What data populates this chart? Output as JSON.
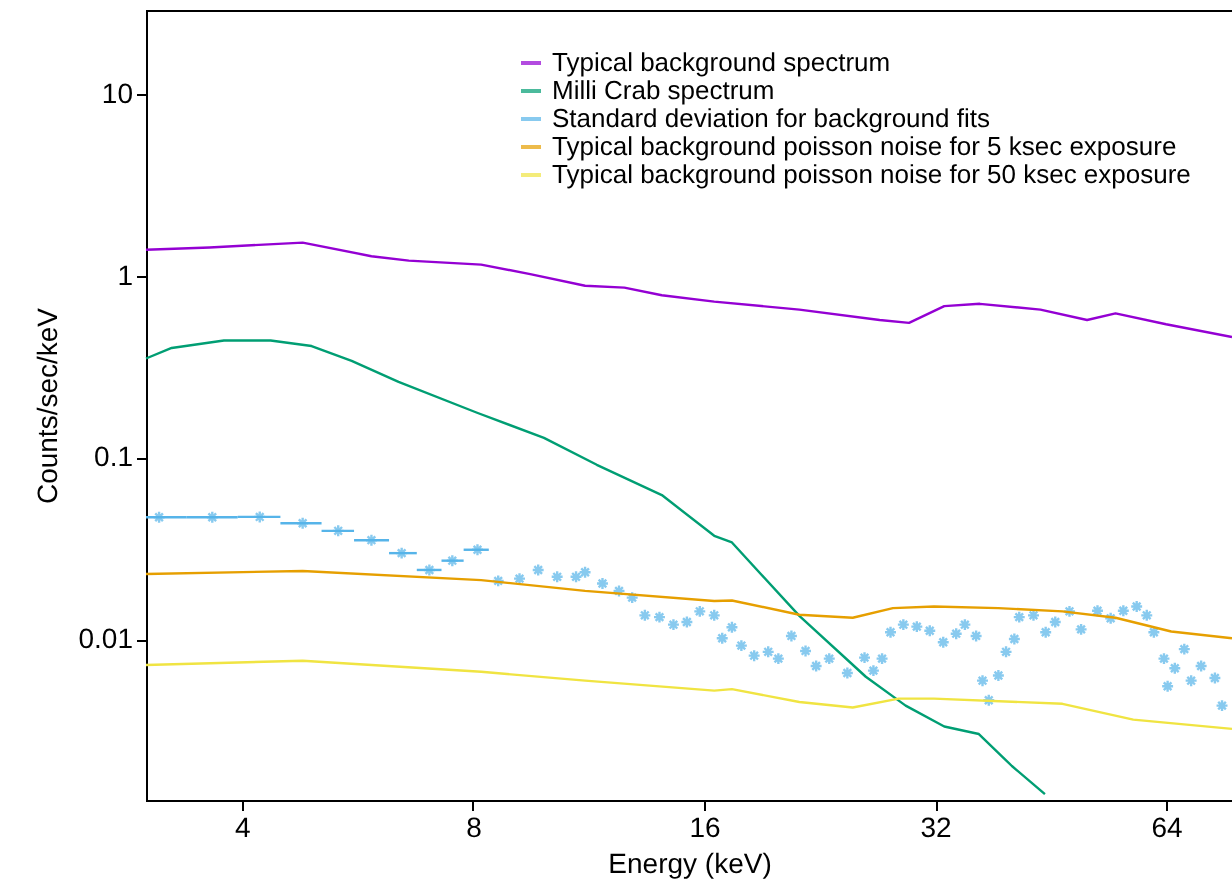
{
  "chart_data": {
    "type": "line",
    "xlabel": "Energy (keV)",
    "ylabel": "Counts/sec/keV",
    "log": "xy",
    "xlim": [
      3,
      78
    ],
    "ylim": [
      0.0013,
      29
    ],
    "xticks": [
      4,
      8,
      16,
      32,
      64
    ],
    "yticks": [
      0.01,
      0.1,
      1,
      10
    ],
    "legend": "top right",
    "grid": false,
    "series": [
      {
        "name": "Typical background spectrum",
        "color": "#9400d3",
        "x": [
          3,
          3.63,
          4.8,
          5.9,
          6.6,
          8.2,
          9.5,
          11.2,
          12.6,
          14.1,
          16.5,
          21.3,
          27.1,
          29.6,
          32.9,
          36.6,
          43.9,
          50.5,
          55,
          64,
          78
        ],
        "values": [
          1.39,
          1.43,
          1.52,
          1.28,
          1.21,
          1.15,
          1.02,
          0.88,
          0.86,
          0.78,
          0.72,
          0.65,
          0.57,
          0.55,
          0.68,
          0.7,
          0.65,
          0.57,
          0.62,
          0.54,
          0.46
        ]
      },
      {
        "name": "Milli Crab spectrum",
        "color": "#009e73",
        "x": [
          3,
          3.24,
          3.79,
          4.36,
          4.93,
          5.56,
          6.4,
          8.1,
          9.9,
          11.6,
          14.1,
          16.5,
          17.4,
          21.3,
          26,
          29.3,
          32.9,
          36.5,
          40.3,
          44.5
        ],
        "values": [
          0.35,
          0.4,
          0.44,
          0.44,
          0.41,
          0.34,
          0.26,
          0.176,
          0.128,
          0.091,
          0.062,
          0.037,
          0.034,
          0.0134,
          0.0062,
          0.0043,
          0.0033,
          0.003,
          0.002,
          0.0014
        ]
      },
      {
        "name": "Standard deviation for background fits",
        "type": "scatter",
        "marker": "cross",
        "color": "#56b4e9",
        "x": [
          3.12,
          3.66,
          4.22,
          4.8,
          5.34,
          5.9,
          6.46,
          7.02,
          7.52,
          8.11,
          8.63,
          9.2,
          9.73,
          10.3,
          10.9,
          11.2,
          11.8,
          12.4,
          12.9,
          13.4,
          14,
          14.6,
          15.2,
          15.8,
          16.5,
          16.9,
          17.4,
          17.9,
          18.6,
          19.4,
          20,
          20.8,
          21.7,
          22.4,
          23.3,
          24.6,
          25.9,
          26.6,
          27.3,
          28,
          29.1,
          30.3,
          31.5,
          32.8,
          34.1,
          35,
          36.2,
          36.9,
          37.6,
          38.7,
          39.6,
          40.6,
          41.2,
          43,
          44.6,
          45.9,
          47.9,
          49.6,
          52.1,
          54.2,
          56.3,
          58.6,
          60.4,
          61.7,
          63.6,
          64.3,
          65.7,
          67.6,
          69,
          71.1,
          74.1,
          75.7
        ],
        "values": [
          0.0468,
          0.0468,
          0.047,
          0.0434,
          0.0394,
          0.035,
          0.0297,
          0.024,
          0.027,
          0.031,
          0.0209,
          0.0215,
          0.024,
          0.022,
          0.022,
          0.0233,
          0.0202,
          0.0184,
          0.0169,
          0.0135,
          0.0132,
          0.012,
          0.0124,
          0.0142,
          0.0135,
          0.0101,
          0.0116,
          0.0092,
          0.0081,
          0.0085,
          0.0078,
          0.0104,
          0.0086,
          0.0071,
          0.0078,
          0.0065,
          0.0079,
          0.0067,
          0.0078,
          0.0109,
          0.012,
          0.0117,
          0.0111,
          0.0096,
          0.0107,
          0.012,
          0.0104,
          0.0059,
          0.0046,
          0.0063,
          0.0085,
          0.01,
          0.0132,
          0.0135,
          0.0109,
          0.0124,
          0.0142,
          0.0113,
          0.0143,
          0.013,
          0.0143,
          0.0151,
          0.0135,
          0.0109,
          0.0078,
          0.0055,
          0.0069,
          0.0088,
          0.0059,
          0.0071,
          0.0061,
          0.0043
        ],
        "xerrors": [
          [
            3,
            3.39
          ],
          [
            3.39,
            3.95
          ],
          [
            3.95,
            4.49
          ],
          [
            4.49,
            5.08
          ],
          [
            5.08,
            5.6
          ],
          [
            5.6,
            6.22
          ],
          [
            6.22,
            6.76
          ],
          [
            6.76,
            7.28
          ],
          [
            7.28,
            7.78
          ],
          [
            7.78,
            8.39
          ],
          null,
          null,
          null,
          null,
          null,
          null,
          null,
          null,
          null,
          null,
          null,
          null,
          null,
          null,
          null,
          null,
          null,
          null,
          null,
          null,
          null,
          null,
          null,
          null,
          null,
          null,
          null,
          null,
          null,
          null,
          null,
          null,
          null,
          null,
          null,
          null,
          null,
          null,
          null,
          null,
          null,
          null,
          null,
          null,
          null,
          null,
          null,
          null,
          null,
          null,
          null,
          null,
          null,
          null,
          null,
          null,
          null,
          null,
          null,
          null,
          null,
          null
        ]
      },
      {
        "name": "Typical background poisson noise for 5 ksec exposure",
        "color": "#e69f00",
        "x": [
          3,
          4.8,
          8.2,
          11.2,
          16.5,
          17.4,
          21.3,
          25,
          28.2,
          31.9,
          38.7,
          46.9,
          55,
          65,
          78
        ],
        "values": [
          0.0228,
          0.0237,
          0.0211,
          0.0184,
          0.0162,
          0.0163,
          0.0136,
          0.0131,
          0.0148,
          0.0151,
          0.0148,
          0.0142,
          0.0131,
          0.011,
          0.0101
        ]
      },
      {
        "name": "Typical background poisson noise for 50 ksec exposure",
        "color": "#f0e442",
        "x": [
          3,
          4.8,
          8.2,
          11.2,
          16.5,
          17.4,
          21.3,
          25,
          28.7,
          31.9,
          46.9,
          58,
          78
        ],
        "values": [
          0.0072,
          0.0076,
          0.0066,
          0.0059,
          0.0052,
          0.0053,
          0.0045,
          0.0042,
          0.0047,
          0.0047,
          0.0044,
          0.0036,
          0.0032
        ]
      }
    ]
  }
}
